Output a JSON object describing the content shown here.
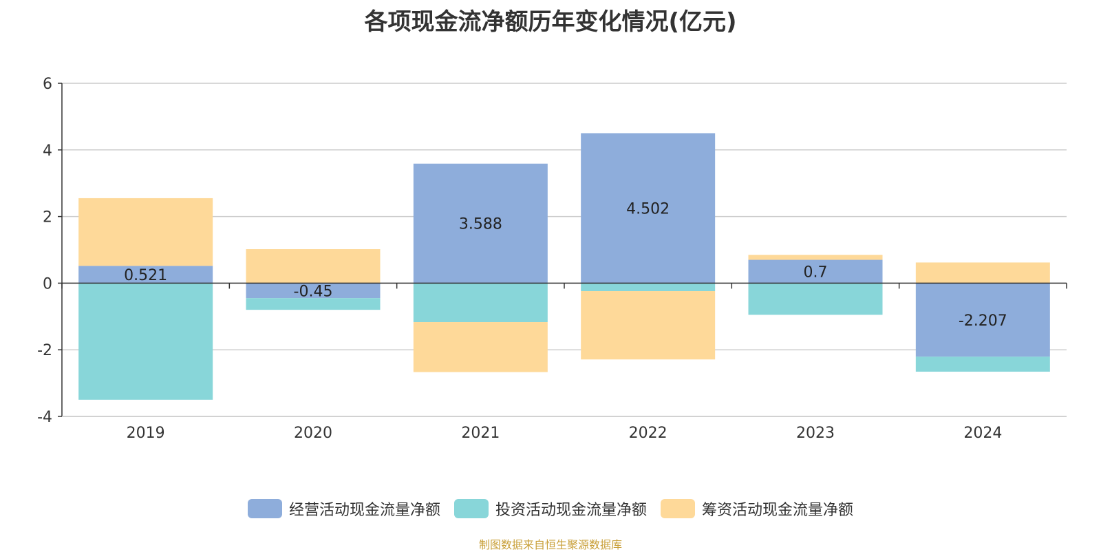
{
  "chart_data": {
    "type": "bar",
    "stacked": true,
    "title": "各项现金流净额历年变化情况(亿元)",
    "categories": [
      "2019",
      "2020",
      "2021",
      "2022",
      "2023",
      "2024"
    ],
    "ylim": [
      -4,
      6
    ],
    "yticks": [
      6,
      4,
      2,
      0,
      -2,
      -4
    ],
    "grid": true,
    "legend_position": "bottom",
    "series": [
      {
        "name": "经营活动现金流量净额",
        "color": "#8eaddb",
        "values": [
          0.521,
          -0.45,
          3.588,
          4.502,
          0.7,
          -2.207
        ],
        "labels": [
          "0.521",
          "-0.45",
          "3.588",
          "4.502",
          "0.7",
          "-2.207"
        ]
      },
      {
        "name": "投资活动现金流量净额",
        "color": "#88d6d9",
        "values": [
          -3.5,
          -0.35,
          -1.17,
          -0.24,
          -0.95,
          -0.45
        ]
      },
      {
        "name": "筹资活动现金流量净额",
        "color": "#fed999",
        "values": [
          2.03,
          1.02,
          -1.5,
          -2.05,
          0.15,
          0.62
        ]
      }
    ],
    "source": "制图数据来自恒生聚源数据库"
  }
}
